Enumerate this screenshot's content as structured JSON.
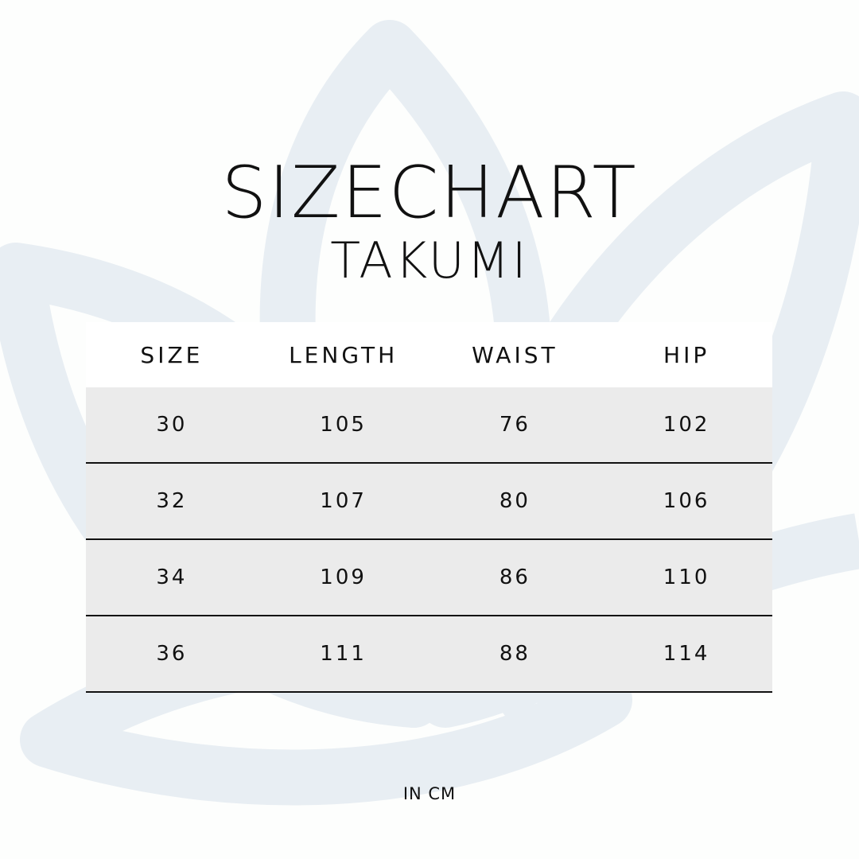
{
  "title": "SIZECHART",
  "subtitle": "TAKUMI",
  "colors": {
    "background_motif": "#e8eef3",
    "row_fill": "#ebebeb",
    "rule": "#111111"
  },
  "background_icon": "lotus-icon",
  "table": {
    "headers": [
      "SIZE",
      "LENGTH",
      "WAIST",
      "HIP"
    ],
    "rows": [
      [
        "30",
        "105",
        "76",
        "102"
      ],
      [
        "32",
        "107",
        "80",
        "106"
      ],
      [
        "34",
        "109",
        "86",
        "110"
      ],
      [
        "36",
        "111",
        "88",
        "114"
      ]
    ]
  },
  "unit_note": "IN CM"
}
